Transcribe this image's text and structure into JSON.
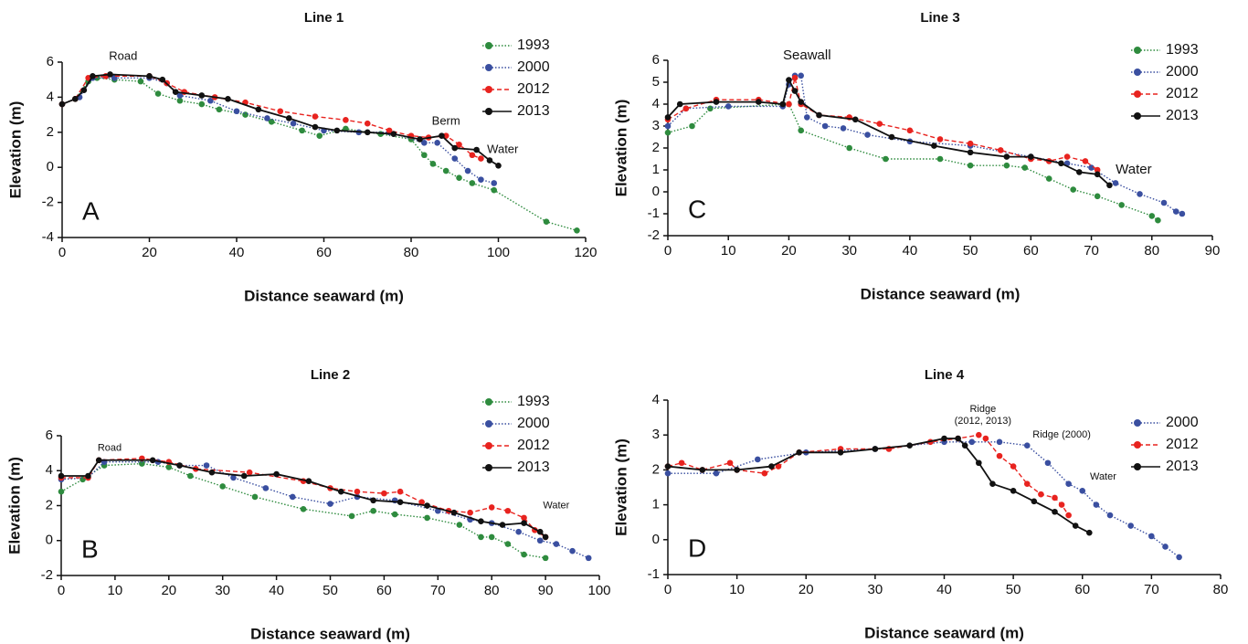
{
  "chart_data": [
    {
      "type": "line",
      "title": "Line 1",
      "xlabel": "Distance seaward (m)",
      "ylabel": "Elevation (m)",
      "panel_label": "A",
      "xlim": [
        0,
        120
      ],
      "xticks": [
        0,
        20,
        40,
        60,
        80,
        100,
        120
      ],
      "ylim": [
        -4,
        6
      ],
      "yticks": [
        -4,
        -2,
        0,
        2,
        4,
        6
      ],
      "legend": "upper right",
      "annotations": [
        {
          "text": [
            "Road"
          ],
          "x": 14,
          "y": 6.3
        },
        {
          "text": [
            "Berm"
          ],
          "x": 88,
          "y": 2.6
        },
        {
          "text": [
            "Water"
          ],
          "x": 101,
          "y": 1.0
        }
      ],
      "series": [
        {
          "name": "1993",
          "color": "#2e8b3e",
          "linestyle": "dotted",
          "x": [
            0,
            3,
            6,
            8,
            12,
            18,
            22,
            27,
            32,
            36,
            42,
            48,
            55,
            59,
            65,
            73,
            80,
            83,
            85,
            88,
            91,
            94,
            99,
            111,
            118
          ],
          "values": [
            3.6,
            3.9,
            4.9,
            5.1,
            5.0,
            4.9,
            4.2,
            3.8,
            3.6,
            3.3,
            3.0,
            2.6,
            2.1,
            1.8,
            2.2,
            1.9,
            1.6,
            0.7,
            0.2,
            -0.2,
            -0.6,
            -0.9,
            -1.3,
            -3.1,
            -3.6
          ]
        },
        {
          "name": "2000",
          "color": "#3a4fa0",
          "linestyle": "dotted",
          "x": [
            0,
            4,
            7,
            12,
            20,
            24,
            27,
            34,
            40,
            47,
            53,
            60,
            68,
            75,
            83,
            86,
            90,
            93,
            96,
            99
          ],
          "values": [
            3.6,
            4.0,
            5.1,
            5.1,
            5.1,
            4.8,
            4.1,
            3.8,
            3.2,
            2.8,
            2.5,
            2.1,
            2.0,
            2.0,
            1.4,
            1.4,
            0.5,
            -0.2,
            -0.7,
            -0.9
          ]
        },
        {
          "name": "2012",
          "color": "#e8231f",
          "linestyle": "dashed",
          "x": [
            0,
            3,
            6,
            10,
            20,
            24,
            28,
            35,
            42,
            50,
            58,
            65,
            70,
            75,
            80,
            84,
            88,
            91,
            94,
            96
          ],
          "values": [
            3.6,
            3.9,
            5.1,
            5.2,
            5.2,
            4.8,
            4.3,
            4.0,
            3.7,
            3.2,
            2.9,
            2.7,
            2.5,
            2.1,
            1.8,
            1.7,
            1.8,
            1.3,
            0.7,
            0.5
          ]
        },
        {
          "name": "2013",
          "color": "#111111",
          "linestyle": "solid",
          "x": [
            0,
            3,
            5,
            7,
            11,
            20,
            23,
            26,
            32,
            38,
            45,
            52,
            58,
            63,
            70,
            76,
            82,
            87,
            90,
            95,
            98,
            100
          ],
          "values": [
            3.6,
            3.9,
            4.4,
            5.2,
            5.3,
            5.2,
            5.0,
            4.3,
            4.1,
            3.9,
            3.3,
            2.8,
            2.3,
            2.1,
            2.0,
            1.9,
            1.6,
            1.8,
            1.1,
            1.0,
            0.4,
            0.1
          ]
        }
      ]
    },
    {
      "type": "line",
      "title": "Line 2",
      "xlabel": "Distance seaward (m)",
      "ylabel": "Elevation (m)",
      "panel_label": "B",
      "xlim": [
        0,
        100
      ],
      "xticks": [
        0,
        10,
        20,
        30,
        40,
        50,
        60,
        70,
        80,
        90,
        100
      ],
      "ylim": [
        -2,
        6
      ],
      "yticks": [
        -2,
        0,
        2,
        4,
        6
      ],
      "legend": "upper right",
      "annotations": [
        {
          "text": [
            "Road"
          ],
          "x": 9,
          "y": 5.3
        },
        {
          "text": [
            "Water"
          ],
          "x": 92,
          "y": 2.0
        }
      ],
      "series": [
        {
          "name": "1993",
          "color": "#2e8b3e",
          "linestyle": "dotted",
          "x": [
            0,
            4,
            8,
            15,
            20,
            24,
            30,
            36,
            45,
            54,
            58,
            62,
            68,
            74,
            78,
            80,
            83,
            86,
            90
          ],
          "values": [
            2.8,
            3.5,
            4.3,
            4.4,
            4.2,
            3.7,
            3.1,
            2.5,
            1.8,
            1.4,
            1.7,
            1.5,
            1.3,
            0.9,
            0.2,
            0.2,
            -0.2,
            -0.8,
            -1.0
          ]
        },
        {
          "name": "2000",
          "color": "#3a4fa0",
          "linestyle": "dotted",
          "x": [
            0,
            5,
            8,
            18,
            22,
            27,
            32,
            38,
            43,
            50,
            55,
            62,
            70,
            76,
            80,
            85,
            89,
            92,
            95,
            98
          ],
          "values": [
            3.5,
            3.6,
            4.5,
            4.5,
            4.3,
            4.3,
            3.6,
            3.0,
            2.5,
            2.1,
            2.5,
            2.3,
            1.7,
            1.2,
            1.0,
            0.5,
            0.0,
            -0.2,
            -0.6,
            -1.0
          ]
        },
        {
          "name": "2012",
          "color": "#e8231f",
          "linestyle": "dashed",
          "x": [
            0,
            5,
            7,
            15,
            20,
            25,
            35,
            45,
            50,
            55,
            60,
            63,
            67,
            72,
            76,
            80,
            83,
            86,
            88,
            90
          ],
          "values": [
            3.6,
            3.6,
            4.6,
            4.7,
            4.5,
            4.1,
            3.9,
            3.4,
            3.0,
            2.8,
            2.7,
            2.8,
            2.2,
            1.7,
            1.6,
            1.9,
            1.7,
            1.3,
            0.6,
            0.2
          ]
        },
        {
          "name": "2013",
          "color": "#111111",
          "linestyle": "solid",
          "x": [
            0,
            5,
            7,
            17,
            22,
            28,
            34,
            40,
            46,
            52,
            58,
            63,
            68,
            73,
            78,
            82,
            86,
            89,
            90
          ],
          "values": [
            3.7,
            3.7,
            4.6,
            4.6,
            4.3,
            3.9,
            3.7,
            3.8,
            3.4,
            2.8,
            2.3,
            2.2,
            2.0,
            1.6,
            1.1,
            0.9,
            1.0,
            0.5,
            0.2
          ]
        }
      ]
    },
    {
      "type": "line",
      "title": "Line 3",
      "xlabel": "Distance seaward (m)",
      "ylabel": "Elevation (m)",
      "panel_label": "C",
      "xlim": [
        0,
        90
      ],
      "xticks": [
        0,
        10,
        20,
        30,
        40,
        50,
        60,
        70,
        80,
        90
      ],
      "ylim": [
        -2,
        6
      ],
      "yticks": [
        -2,
        -1,
        0,
        1,
        2,
        3,
        4,
        5,
        6
      ],
      "legend": "upper right",
      "annotations": [
        {
          "text": [
            "Seawall"
          ],
          "x": 23,
          "y": 6.2
        },
        {
          "text": [
            "Water"
          ],
          "x": 77,
          "y": 1.0
        }
      ],
      "series": [
        {
          "name": "1993",
          "color": "#2e8b3e",
          "linestyle": "dotted",
          "x": [
            0,
            4,
            7,
            20,
            22,
            30,
            36,
            45,
            50,
            56,
            59,
            63,
            67,
            71,
            75,
            80,
            81
          ],
          "values": [
            2.7,
            3.0,
            3.8,
            4.0,
            2.8,
            2.0,
            1.5,
            1.5,
            1.2,
            1.2,
            1.1,
            0.6,
            0.1,
            -0.2,
            -0.6,
            -1.1,
            -1.3
          ]
        },
        {
          "name": "2000",
          "color": "#3a4fa0",
          "linestyle": "dotted",
          "x": [
            0,
            3,
            10,
            19,
            20,
            21,
            22,
            23,
            26,
            29,
            33,
            40,
            50,
            60,
            66,
            70,
            74,
            78,
            82,
            84,
            85
          ],
          "values": [
            3.0,
            3.8,
            3.9,
            3.9,
            4.9,
            5.3,
            5.3,
            3.4,
            3.0,
            2.9,
            2.6,
            2.3,
            2.1,
            1.6,
            1.3,
            1.1,
            0.4,
            -0.1,
            -0.5,
            -0.9,
            -1.0
          ]
        },
        {
          "name": "2012",
          "color": "#e8231f",
          "linestyle": "dashed",
          "x": [
            0,
            3,
            8,
            15,
            20,
            21,
            22,
            25,
            30,
            35,
            40,
            45,
            50,
            55,
            60,
            63,
            66,
            69,
            71
          ],
          "values": [
            3.3,
            3.8,
            4.2,
            4.2,
            4.0,
            5.2,
            4.0,
            3.5,
            3.4,
            3.1,
            2.8,
            2.4,
            2.2,
            1.9,
            1.5,
            1.4,
            1.6,
            1.4,
            1.0
          ]
        },
        {
          "name": "2013",
          "color": "#111111",
          "linestyle": "solid",
          "x": [
            0,
            2,
            8,
            15,
            19,
            20,
            21,
            22,
            25,
            31,
            37,
            44,
            50,
            56,
            60,
            65,
            68,
            71,
            73
          ],
          "values": [
            3.4,
            4.0,
            4.1,
            4.1,
            4.0,
            5.1,
            4.6,
            4.1,
            3.5,
            3.3,
            2.5,
            2.1,
            1.8,
            1.6,
            1.6,
            1.3,
            0.9,
            0.8,
            0.3
          ]
        }
      ]
    },
    {
      "type": "line",
      "title": "Line 4",
      "xlabel": "Distance seaward (m)",
      "ylabel": "Elevation (m)",
      "panel_label": "D",
      "xlim": [
        0,
        80
      ],
      "xticks": [
        0,
        10,
        20,
        30,
        40,
        50,
        60,
        70,
        80
      ],
      "ylim": [
        -1,
        4
      ],
      "yticks": [
        -1,
        0,
        1,
        2,
        3,
        4
      ],
      "legend": "upper right",
      "annotations": [
        {
          "text": [
            "Ridge",
            "(2012, 2013)"
          ],
          "x": 45.6,
          "y": 3.74
        },
        {
          "text": [
            "Ridge (2000)"
          ],
          "x": 57,
          "y": 3.0
        },
        {
          "text": [
            "Water"
          ],
          "x": 63,
          "y": 1.8
        }
      ],
      "series": [
        {
          "name": "2000",
          "color": "#3a4fa0",
          "linestyle": "dotted",
          "x": [
            0,
            7,
            13,
            20,
            30,
            40,
            44,
            48,
            52,
            55,
            58,
            60,
            62,
            64,
            67,
            70,
            72,
            74
          ],
          "values": [
            1.9,
            1.9,
            2.3,
            2.5,
            2.6,
            2.8,
            2.8,
            2.8,
            2.7,
            2.2,
            1.6,
            1.4,
            1.0,
            0.7,
            0.4,
            0.1,
            -0.2,
            -0.5
          ]
        },
        {
          "name": "2012",
          "color": "#e8231f",
          "linestyle": "dashed",
          "x": [
            0,
            2,
            5,
            9,
            10,
            14,
            16,
            19,
            25,
            32,
            38,
            42,
            45,
            46,
            48,
            50,
            52,
            54,
            56,
            57,
            58
          ],
          "values": [
            2.1,
            2.2,
            2.0,
            2.2,
            2.0,
            1.9,
            2.1,
            2.5,
            2.6,
            2.6,
            2.8,
            2.9,
            3.0,
            2.9,
            2.4,
            2.1,
            1.6,
            1.3,
            1.2,
            1.0,
            0.7
          ]
        },
        {
          "name": "2013",
          "color": "#111111",
          "linestyle": "solid",
          "x": [
            0,
            5,
            10,
            15,
            19,
            25,
            30,
            35,
            40,
            42,
            43,
            45,
            47,
            50,
            53,
            56,
            59,
            61
          ],
          "values": [
            2.1,
            2.0,
            2.0,
            2.1,
            2.5,
            2.5,
            2.6,
            2.7,
            2.9,
            2.9,
            2.7,
            2.2,
            1.6,
            1.4,
            1.1,
            0.8,
            0.4,
            0.2
          ]
        }
      ]
    }
  ]
}
